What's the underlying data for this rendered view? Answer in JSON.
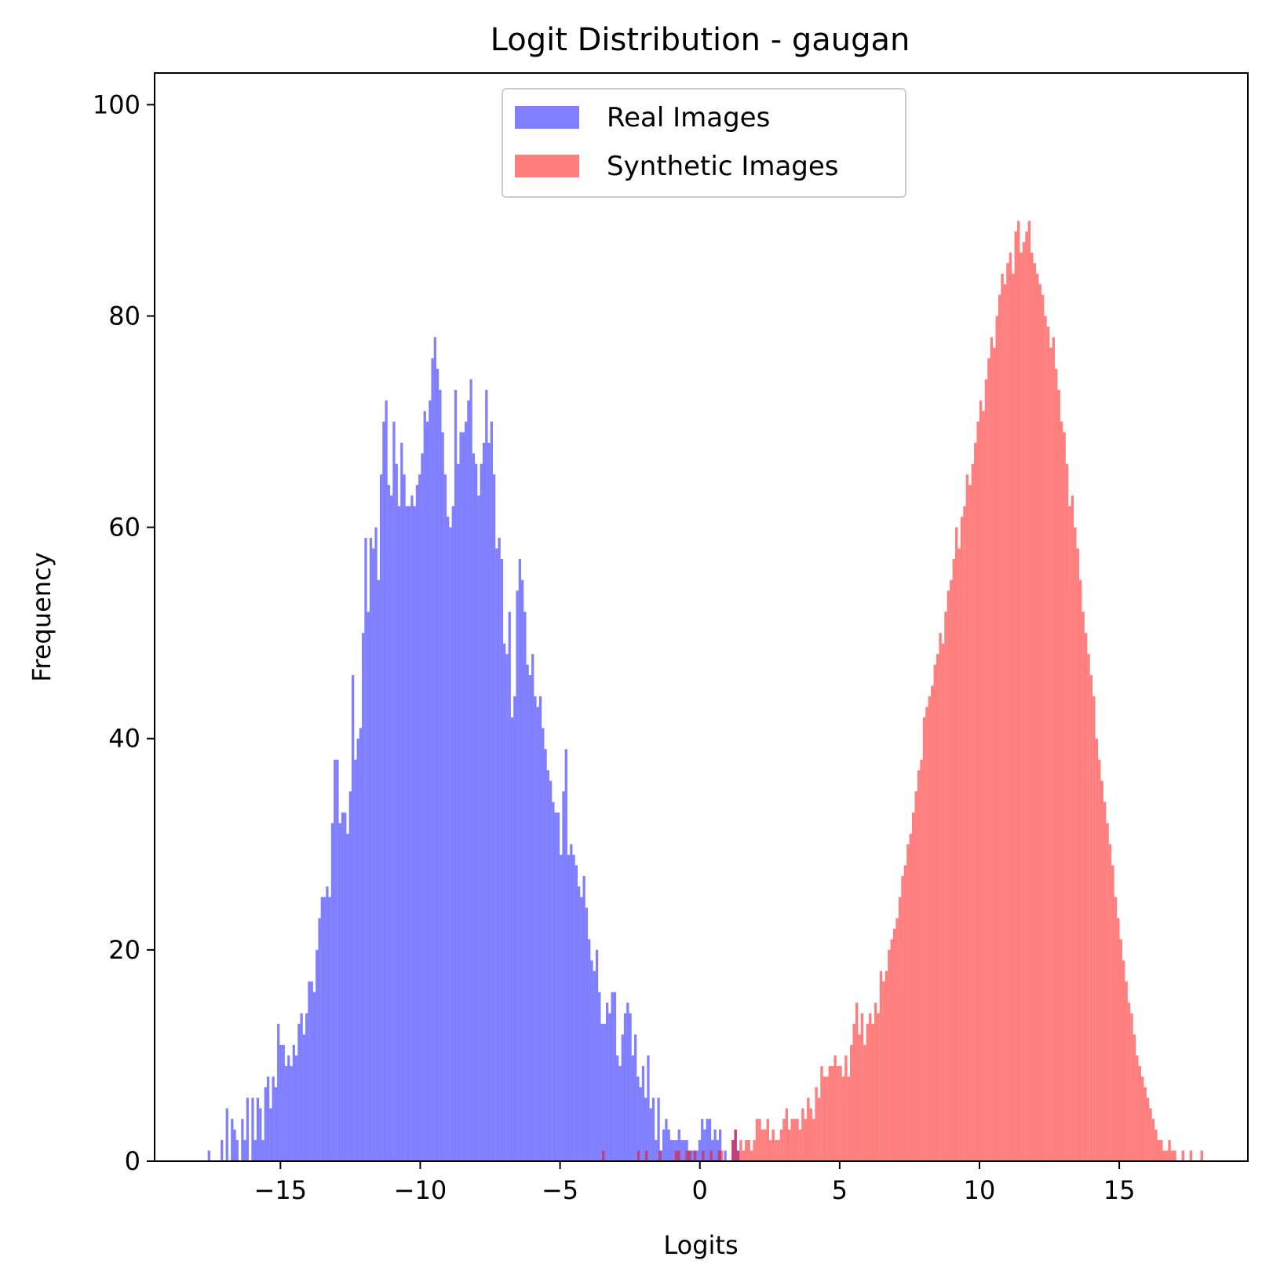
{
  "chart_data": {
    "type": "bar",
    "subtype": "histogram",
    "title": "Logit Distribution - gaugan",
    "xlabel": "Logits",
    "ylabel": "Frequency",
    "xlim": [
      -19.5,
      19.6
    ],
    "ylim": [
      0,
      103
    ],
    "x_ticks": [
      -15,
      -10,
      -5,
      0,
      5,
      10,
      15
    ],
    "x_tick_labels": [
      "−15",
      "−10",
      "−5",
      "0",
      "5",
      "10",
      "15"
    ],
    "y_ticks": [
      0,
      20,
      40,
      60,
      80,
      100
    ],
    "y_tick_labels": [
      "0",
      "20",
      "40",
      "60",
      "80",
      "100"
    ],
    "grid": false,
    "legend_position": "upper-center",
    "alpha": 0.5,
    "series": [
      {
        "name": "Real Images",
        "color": "#0000ff",
        "bin_range": [
          -17.6,
          1.6
        ],
        "counts": [
          1,
          0,
          0,
          0,
          0,
          2,
          0,
          5,
          0,
          4,
          3,
          2,
          0,
          4,
          2,
          6,
          0,
          6,
          2,
          6,
          5,
          2,
          7,
          8,
          5,
          8,
          7,
          13,
          11,
          11,
          9,
          10,
          9,
          11,
          10,
          13,
          14,
          12,
          14,
          17,
          17,
          16,
          20,
          23,
          25,
          25,
          26,
          25,
          32,
          38,
          38,
          32,
          33,
          33,
          31,
          35,
          46,
          38,
          40,
          41,
          50,
          59,
          52,
          59,
          58,
          60,
          55,
          65,
          70,
          72,
          64,
          63,
          70,
          66,
          62,
          68,
          65,
          62,
          62,
          63,
          62,
          64,
          65,
          67,
          71,
          70,
          72,
          76,
          78,
          75,
          73,
          69,
          65,
          61,
          60,
          62,
          73,
          66,
          69,
          69,
          70,
          72,
          74,
          67,
          66,
          63,
          66,
          68,
          73,
          68,
          70,
          65,
          58,
          59,
          57,
          49,
          48,
          52,
          42,
          44,
          54,
          57,
          55,
          52,
          47,
          46,
          48,
          44,
          43,
          44,
          41,
          39,
          37,
          36,
          34,
          33,
          33,
          29,
          35,
          39,
          29,
          30,
          29,
          28,
          26,
          25,
          27,
          24,
          21,
          19,
          18,
          20,
          16,
          13,
          13,
          15,
          14,
          16,
          16,
          10,
          9,
          12,
          14,
          15,
          14,
          10,
          12,
          8,
          7,
          9,
          6,
          10,
          5,
          6,
          2,
          6,
          1,
          3,
          4,
          3,
          2,
          2,
          2,
          3,
          2,
          2,
          2,
          1,
          1,
          1,
          1,
          2,
          4,
          3,
          4,
          4,
          2,
          3,
          2,
          3,
          0,
          1,
          0,
          0,
          2,
          3,
          1,
          0,
          0
        ]
      },
      {
        "name": "Synthetic Images",
        "color": "#ff0000",
        "bin_range": [
          -3.5,
          18.0
        ],
        "counts": [
          1,
          0,
          0,
          0,
          0,
          0,
          0,
          0,
          0,
          0,
          0,
          0,
          0,
          1,
          0,
          0,
          1,
          0,
          0,
          0,
          0,
          1,
          0,
          0,
          0,
          0,
          0,
          1,
          1,
          0,
          0,
          1,
          1,
          0,
          1,
          0,
          0,
          1,
          0,
          0,
          1,
          0,
          0,
          1,
          1,
          0,
          0,
          0,
          2,
          3,
          1,
          2,
          1,
          2,
          2,
          1,
          2,
          4,
          4,
          3,
          3,
          4,
          2,
          3,
          2,
          2,
          3,
          4,
          5,
          3,
          4,
          4,
          4,
          3,
          5,
          4,
          6,
          5,
          4,
          7,
          6,
          9,
          8,
          8,
          9,
          9,
          10,
          9,
          9,
          8,
          10,
          8,
          11,
          13,
          15,
          12,
          14,
          11,
          13,
          14,
          13,
          15,
          14,
          18,
          17,
          18,
          20,
          21,
          22,
          23,
          25,
          27,
          28,
          30,
          31,
          33,
          35,
          37,
          38,
          42,
          43,
          44,
          45,
          47,
          48,
          50,
          49,
          52,
          54,
          55,
          57,
          60,
          58,
          61,
          62,
          65,
          64,
          66,
          68,
          70,
          72,
          71,
          74,
          76,
          78,
          77,
          80,
          82,
          84,
          83,
          85,
          86,
          84,
          88,
          89,
          86,
          87,
          88,
          89,
          86,
          85,
          84,
          83,
          82,
          80,
          79,
          77,
          78,
          75,
          73,
          70,
          69,
          66,
          62,
          63,
          60,
          58,
          55,
          52,
          50,
          48,
          46,
          44,
          40,
          38,
          36,
          34,
          32,
          30,
          28,
          25,
          23,
          21,
          19,
          17,
          15,
          14,
          12,
          10,
          9,
          8,
          7,
          6,
          5,
          4,
          3,
          2,
          2,
          1,
          1,
          2,
          1,
          1,
          0,
          0,
          1,
          0,
          0,
          1,
          0,
          0,
          0,
          1
        ]
      }
    ]
  }
}
